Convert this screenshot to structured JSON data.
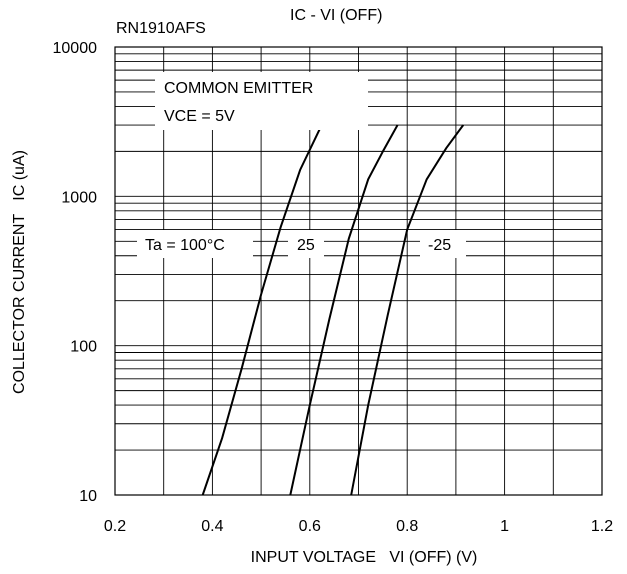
{
  "chart_data": {
    "type": "line",
    "title": "IC - VI (OFF)",
    "subtitle": "RN1910AFS",
    "xlabel": "INPUT VOLTAGE   VI (OFF) (V)",
    "ylabel": "COLLECTOR CURRENT   IC (uA)",
    "xlim": [
      0.2,
      1.2
    ],
    "ylim": [
      10,
      10000
    ],
    "yscale": "log",
    "grid": true,
    "x_ticks": [
      "0.2",
      "0.4",
      "0.6",
      "0.8",
      "1",
      "1.2"
    ],
    "y_ticks": [
      "10",
      "100",
      "1000",
      "10000"
    ],
    "annotations": {
      "condition_1": "COMMON EMITTER",
      "condition_2": "VCE = 5V",
      "series_100": "Ta = 100°C",
      "series_25": "25",
      "series_m25": "-25"
    },
    "series": [
      {
        "name": "Ta = 100°C",
        "x": [
          0.38,
          0.42,
          0.46,
          0.5,
          0.54,
          0.58,
          0.62
        ],
        "y": [
          10,
          24,
          70,
          220,
          620,
          1500,
          2800
        ]
      },
      {
        "name": "25",
        "x": [
          0.56,
          0.6,
          0.64,
          0.68,
          0.72,
          0.75,
          0.78
        ],
        "y": [
          10,
          40,
          150,
          520,
          1300,
          2000,
          3000
        ]
      },
      {
        "name": "-25",
        "x": [
          0.685,
          0.72,
          0.76,
          0.8,
          0.84,
          0.88,
          0.915
        ],
        "y": [
          10,
          40,
          160,
          600,
          1300,
          2100,
          3000
        ]
      }
    ]
  }
}
